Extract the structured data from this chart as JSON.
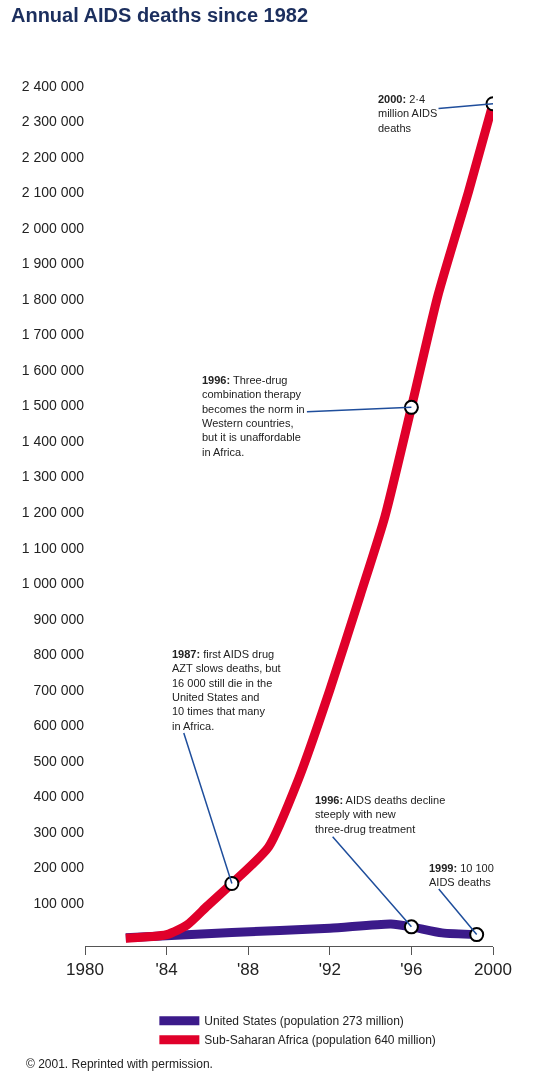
{
  "chart_data": {
    "type": "line",
    "title": "Annual AIDS deaths since 1982",
    "x": [
      1982,
      1984,
      1985,
      1986,
      1987.2,
      1989,
      1990.5,
      1992,
      1993.5,
      1994.7,
      1996,
      1997.3,
      1998.8,
      2000
    ],
    "series": [
      {
        "name": "United States (population 273 million)",
        "color": "#3b1a8a",
        "x": [
          1982,
          1987.2,
          1992,
          1995,
          1996,
          1997.5,
          1999.2
        ],
        "values": [
          1000,
          16000,
          28000,
          40000,
          32000,
          15000,
          10100
        ]
      },
      {
        "name": "Sub-Saharan Africa (population 640 million)",
        "color": "#e0002a",
        "values": [
          0,
          10000,
          37000,
          91000,
          154000,
          257000,
          453000,
          699000,
          967000,
          1187000,
          1495000,
          1810000,
          2102000,
          2350000
        ]
      }
    ],
    "xlim": [
      1980,
      2000
    ],
    "xticks": [
      1980,
      {
        "value": 1984,
        "label": "'84"
      },
      {
        "value": 1988,
        "label": "'88"
      },
      {
        "value": 1992,
        "label": "'92"
      },
      {
        "value": 1996,
        "label": "'96"
      },
      {
        "value": 2000,
        "label": "2000"
      }
    ],
    "ylim": [
      -22000,
      2400000
    ],
    "yticks": [
      {
        "value": 100000,
        "label": "100 000"
      },
      {
        "value": 200000,
        "label": "200 000"
      },
      {
        "value": 300000,
        "label": "300 000"
      },
      {
        "value": 400000,
        "label": "400 000"
      },
      {
        "value": 500000,
        "label": "500 000"
      },
      {
        "value": 600000,
        "label": "600 000"
      },
      {
        "value": 700000,
        "label": "700 000"
      },
      {
        "value": 800000,
        "label": "800 000"
      },
      {
        "value": 900000,
        "label": "900 000"
      },
      {
        "value": 1000000,
        "label": "1 000 000"
      },
      {
        "value": 1100000,
        "label": "1 100 000"
      },
      {
        "value": 1200000,
        "label": "1 200 000"
      },
      {
        "value": 1300000,
        "label": "1 300 000"
      },
      {
        "value": 1400000,
        "label": "1 400 000"
      },
      {
        "value": 1500000,
        "label": "1 500 000"
      },
      {
        "value": 1600000,
        "label": "1 600 000"
      },
      {
        "value": 1700000,
        "label": "1 700 000"
      },
      {
        "value": 1800000,
        "label": "1 800 000"
      },
      {
        "value": 1900000,
        "label": "1 900 000"
      },
      {
        "value": 2000000,
        "label": "2 000 000"
      },
      {
        "value": 2100000,
        "label": "2 100 000"
      },
      {
        "value": 2200000,
        "label": "2 200 000"
      },
      {
        "value": 2300000,
        "label": "2 300 000"
      },
      {
        "value": 2400000,
        "label": "2 400 000"
      }
    ],
    "legend": "bottom",
    "marker": "none",
    "line_style": "solid",
    "annotations": [
      {
        "text": "2000: 2·4\nmillion AIDS\ndeaths",
        "x": 2000,
        "y": 2350000
      },
      {
        "text": "1996: Three-drug\ncombination therapy\nbecomes the norm in\nWestern countries,\nbut it is unaffordable\nin Africa.",
        "x": 1996,
        "y": 1495000
      },
      {
        "text": "1987: first AIDS drug\nAZT slows deaths, but\n16 000 still die in the\nUnited States and\n10 times that many\nin Africa.",
        "x": 1987.2,
        "y": 154000
      },
      {
        "text": "1996: AIDS deaths decline\nsteeply with new\nthree-drug treatment",
        "x": 1996,
        "y": 32000
      },
      {
        "text": "1999: 10 100\nAIDS deaths",
        "x": 1999.2,
        "y": 10100
      },
      "© 2001. Reprinted with permission."
    ]
  }
}
